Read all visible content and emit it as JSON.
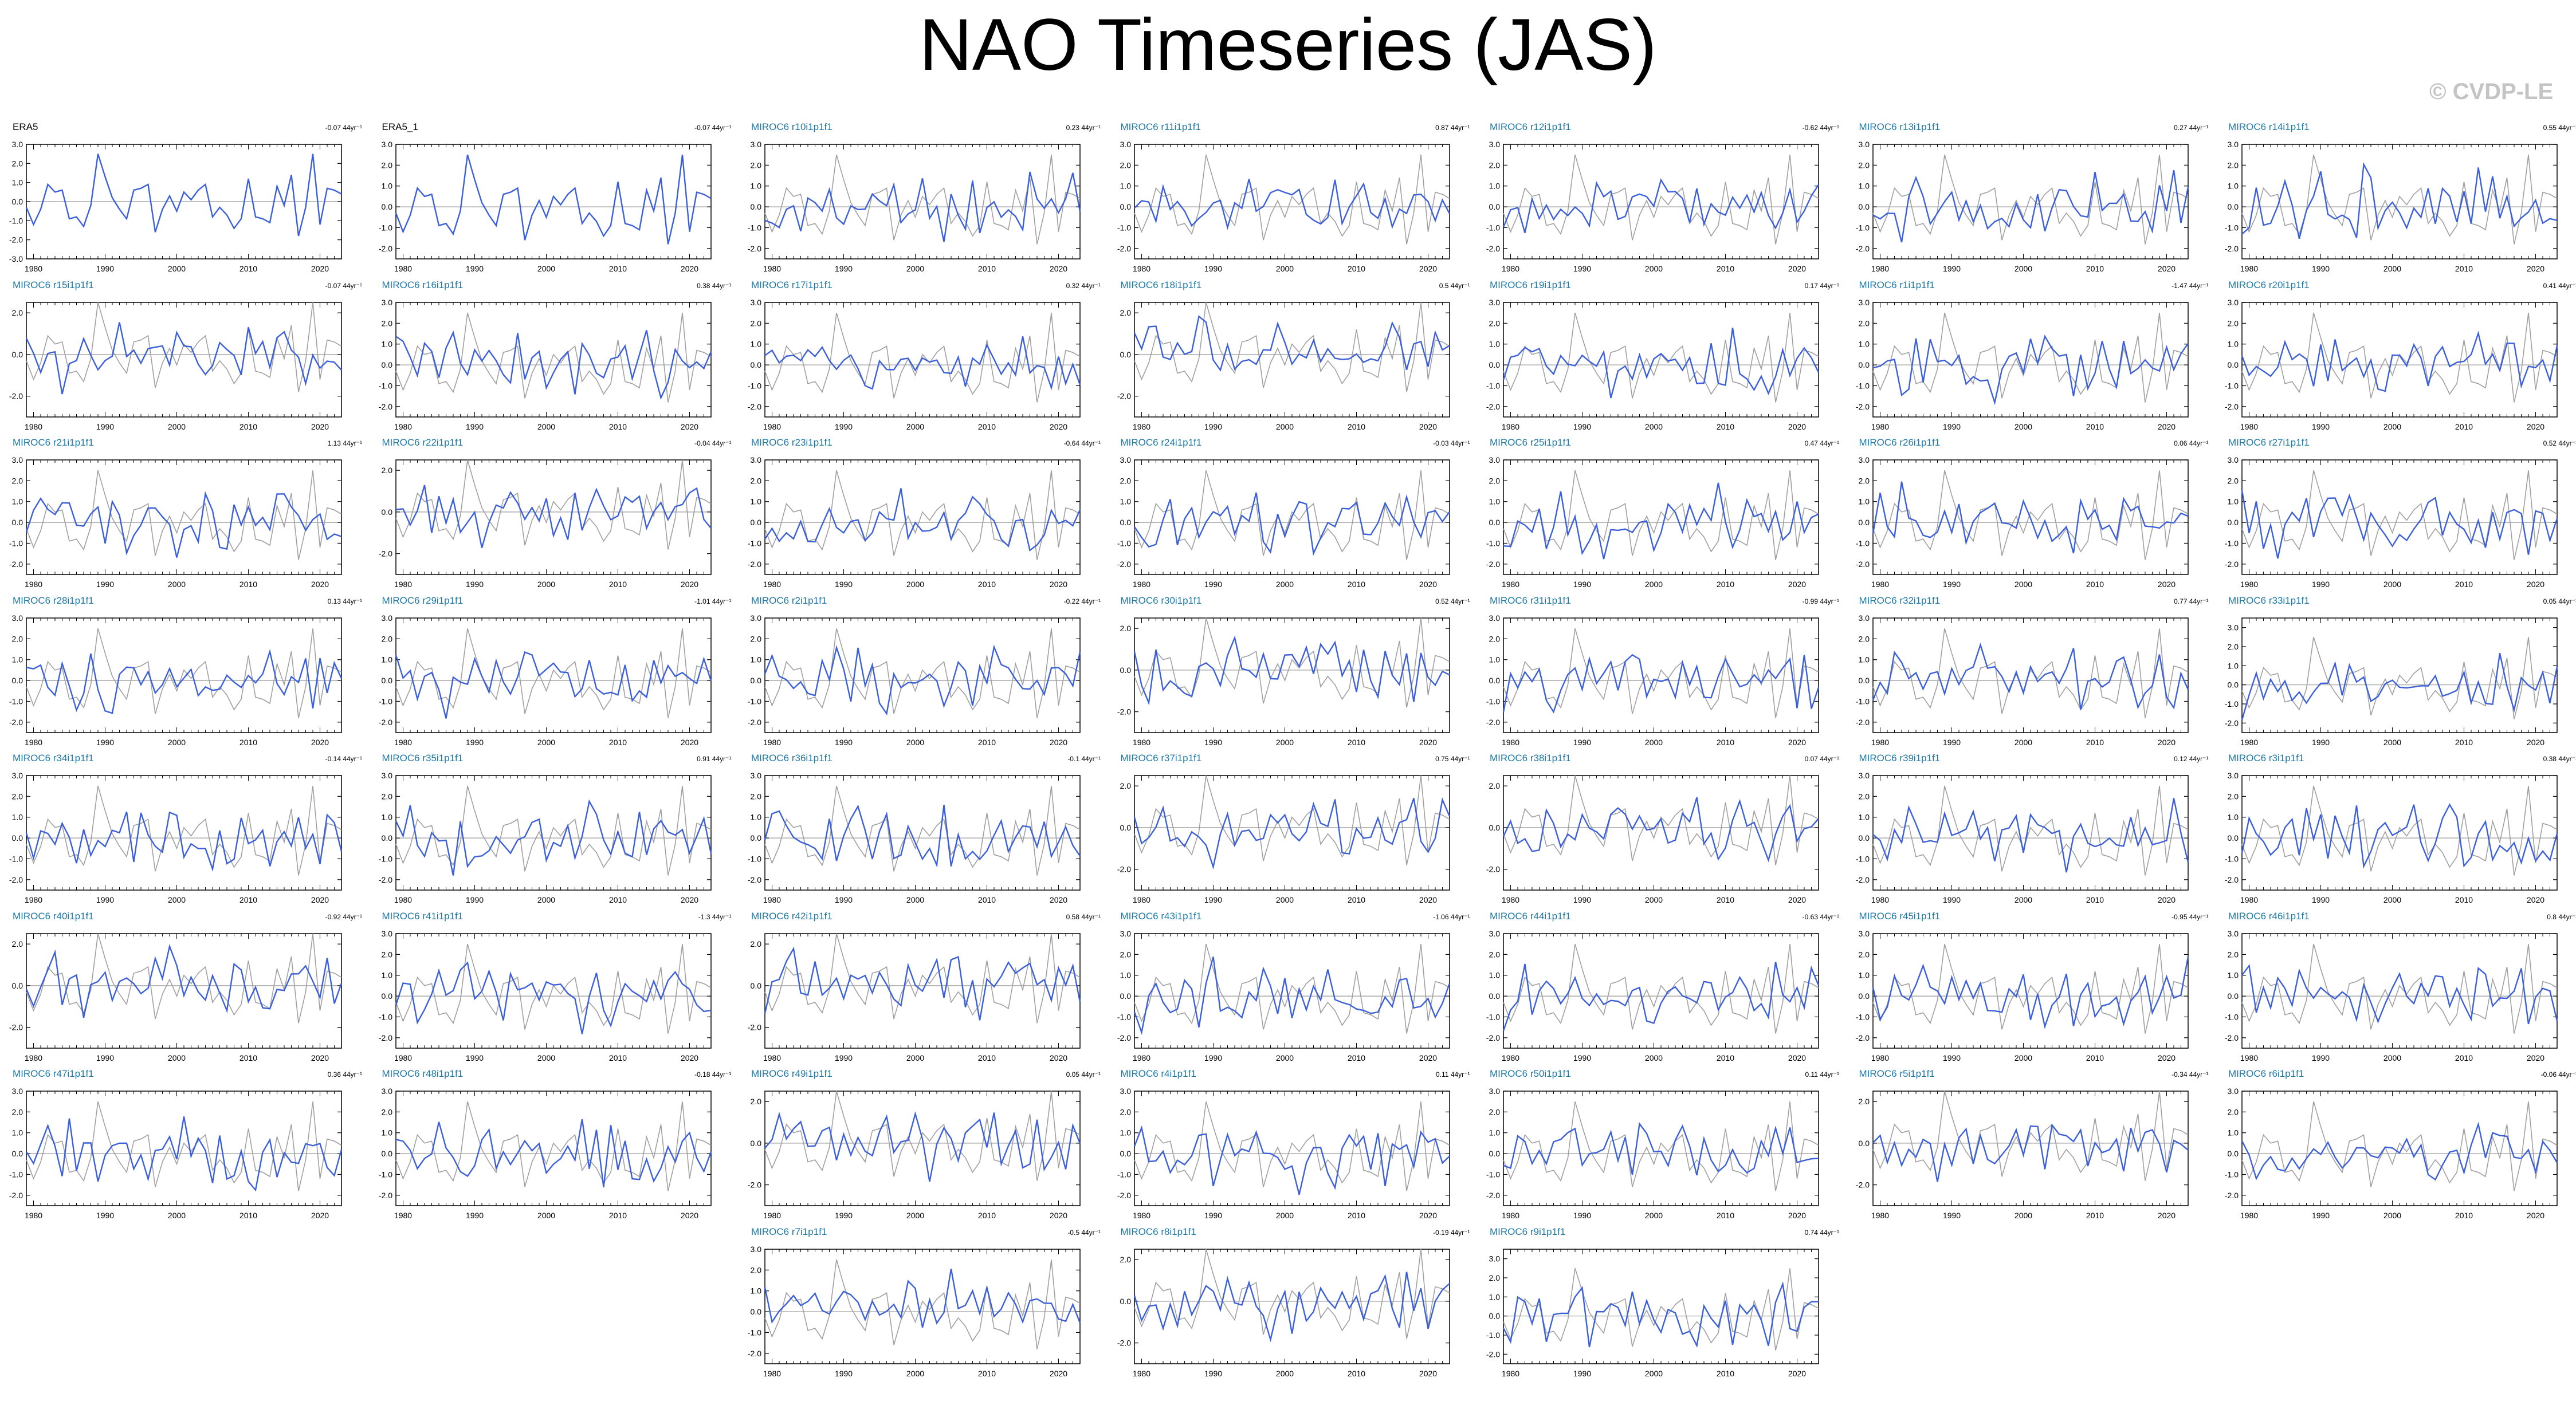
{
  "title": "NAO Timeseries (JAS)",
  "credit": "© CVDP-LE",
  "colors": {
    "obs": "#a0a0a0",
    "member": "#3b5fd8",
    "title_text": "#1e78a4",
    "obs_title": "#000000"
  },
  "chart_data": {
    "type": "line",
    "grid_layout": {
      "columns": 7,
      "rows": 8
    },
    "x_range": [
      1979,
      2023
    ],
    "x_ticks": [
      "1980",
      "1990",
      "2000",
      "2010",
      "2020"
    ],
    "y_axis_variants": {
      "A": {
        "ylim": [
          -3.0,
          3.0
        ],
        "ticks": [
          "3.0",
          "2.0",
          "1.0",
          "0.0",
          "-1.0",
          "-2.0",
          "-3.0"
        ]
      },
      "B": {
        "ylim": [
          -2.5,
          3.0
        ],
        "ticks": [
          "3.0",
          "2.0",
          "1.0",
          "0.0",
          "-1.0",
          "-2.0"
        ]
      },
      "C": {
        "ylim": [
          -3.0,
          2.5
        ],
        "ticks": [
          "2.0",
          "0.0",
          "-2.0"
        ]
      },
      "D": {
        "ylim": [
          -2.5,
          3.5
        ],
        "ticks": [
          "3.0",
          "2.0",
          "1.0",
          "0.0",
          "-1.0",
          "-2.0"
        ]
      }
    },
    "obs_series": [
      -0.3,
      -1.2,
      -0.4,
      0.9,
      0.5,
      0.6,
      -0.9,
      -0.8,
      -1.3,
      -0.2,
      2.5,
      1.3,
      0.2,
      -0.4,
      -0.9,
      0.6,
      0.7,
      0.9,
      -1.6,
      -0.4,
      0.3,
      -0.5,
      0.5,
      0.1,
      0.6,
      0.9,
      -0.8,
      -0.3,
      -0.7,
      -1.4,
      -0.9,
      1.2,
      -0.8,
      -0.9,
      -1.1,
      0.8,
      -0.2,
      1.4,
      -1.8,
      -0.3,
      2.5,
      -1.2,
      0.7,
      0.6,
      0.4
    ],
    "panels": [
      {
        "name": "ERA5",
        "trend": "-0.07 44yr⁻¹",
        "col": 0,
        "row": 0,
        "y": "A",
        "obs": true,
        "seed": 0
      },
      {
        "name": "ERA5_1",
        "trend": "-0.07 44yr⁻¹",
        "col": 1,
        "row": 0,
        "y": "B",
        "obs": true,
        "seed": 0
      },
      {
        "name": "MIROC6 r10i1p1f1",
        "trend": "0.23 44yr⁻¹",
        "col": 2,
        "row": 0,
        "y": "B",
        "seed": 11
      },
      {
        "name": "MIROC6 r11i1p1f1",
        "trend": "0.87 44yr⁻¹",
        "col": 3,
        "row": 0,
        "y": "B",
        "seed": 12
      },
      {
        "name": "MIROC6 r12i1p1f1",
        "trend": "-0.62 44yr⁻¹",
        "col": 4,
        "row": 0,
        "y": "B",
        "seed": 13
      },
      {
        "name": "MIROC6 r13i1p1f1",
        "trend": "0.27 44yr⁻¹",
        "col": 5,
        "row": 0,
        "y": "B",
        "seed": 14
      },
      {
        "name": "MIROC6 r14i1p1f1",
        "trend": "0.55 44yr⁻¹",
        "col": 6,
        "row": 0,
        "y": "B",
        "seed": 15
      },
      {
        "name": "MIROC6 r15i1p1f1",
        "trend": "-0.07 44yr⁻¹",
        "col": 0,
        "row": 1,
        "y": "C",
        "seed": 16
      },
      {
        "name": "MIROC6 r16i1p1f1",
        "trend": "0.38 44yr⁻¹",
        "col": 1,
        "row": 1,
        "y": "B",
        "seed": 17
      },
      {
        "name": "MIROC6 r17i1p1f1",
        "trend": "0.32 44yr⁻¹",
        "col": 2,
        "row": 1,
        "y": "B",
        "seed": 18
      },
      {
        "name": "MIROC6 r18i1p1f1",
        "trend": "0.5 44yr⁻¹",
        "col": 3,
        "row": 1,
        "y": "C",
        "seed": 19
      },
      {
        "name": "MIROC6 r19i1p1f1",
        "trend": "0.17 44yr⁻¹",
        "col": 4,
        "row": 1,
        "y": "B",
        "seed": 20
      },
      {
        "name": "MIROC6 r1i1p1f1",
        "trend": "-1.47 44yr⁻¹",
        "col": 5,
        "row": 1,
        "y": "B",
        "seed": 21
      },
      {
        "name": "MIROC6 r20i1p1f1",
        "trend": "0.41 44yr⁻¹",
        "col": 6,
        "row": 1,
        "y": "B",
        "seed": 22
      },
      {
        "name": "MIROC6 r21i1p1f1",
        "trend": "1.13 44yr⁻¹",
        "col": 0,
        "row": 2,
        "y": "B",
        "seed": 23
      },
      {
        "name": "MIROC6 r22i1p1f1",
        "trend": "-0.04 44yr⁻¹",
        "col": 1,
        "row": 2,
        "y": "C",
        "seed": 24
      },
      {
        "name": "MIROC6 r23i1p1f1",
        "trend": "-0.64 44yr⁻¹",
        "col": 2,
        "row": 2,
        "y": "B",
        "seed": 25
      },
      {
        "name": "MIROC6 r24i1p1f1",
        "trend": "-0.03 44yr⁻¹",
        "col": 3,
        "row": 2,
        "y": "B",
        "seed": 26
      },
      {
        "name": "MIROC6 r25i1p1f1",
        "trend": "0.47 44yr⁻¹",
        "col": 4,
        "row": 2,
        "y": "B",
        "seed": 27
      },
      {
        "name": "MIROC6 r26i1p1f1",
        "trend": "0.06 44yr⁻¹",
        "col": 5,
        "row": 2,
        "y": "B",
        "seed": 28
      },
      {
        "name": "MIROC6 r27i1p1f1",
        "trend": "0.52 44yr⁻¹",
        "col": 6,
        "row": 2,
        "y": "B",
        "seed": 29
      },
      {
        "name": "MIROC6 r28i1p1f1",
        "trend": "0.13 44yr⁻¹",
        "col": 0,
        "row": 3,
        "y": "B",
        "seed": 30
      },
      {
        "name": "MIROC6 r29i1p1f1",
        "trend": "-1.01 44yr⁻¹",
        "col": 1,
        "row": 3,
        "y": "B",
        "seed": 31
      },
      {
        "name": "MIROC6 r2i1p1f1",
        "trend": "-0.22 44yr⁻¹",
        "col": 2,
        "row": 3,
        "y": "B",
        "seed": 32
      },
      {
        "name": "MIROC6 r30i1p1f1",
        "trend": "0.52 44yr⁻¹",
        "col": 3,
        "row": 3,
        "y": "C",
        "seed": 33
      },
      {
        "name": "MIROC6 r31i1p1f1",
        "trend": "-0.99 44yr⁻¹",
        "col": 4,
        "row": 3,
        "y": "B",
        "seed": 34
      },
      {
        "name": "MIROC6 r32i1p1f1",
        "trend": "0.77 44yr⁻¹",
        "col": 5,
        "row": 3,
        "y": "B",
        "seed": 35
      },
      {
        "name": "MIROC6 r33i1p1f1",
        "trend": "0.05 44yr⁻¹",
        "col": 6,
        "row": 3,
        "y": "D",
        "seed": 36
      },
      {
        "name": "MIROC6 r34i1p1f1",
        "trend": "-0.14 44yr⁻¹",
        "col": 0,
        "row": 4,
        "y": "B",
        "seed": 37
      },
      {
        "name": "MIROC6 r35i1p1f1",
        "trend": "0.91 44yr⁻¹",
        "col": 1,
        "row": 4,
        "y": "B",
        "seed": 38
      },
      {
        "name": "MIROC6 r36i1p1f1",
        "trend": "-0.1 44yr⁻¹",
        "col": 2,
        "row": 4,
        "y": "B",
        "seed": 39
      },
      {
        "name": "MIROC6 r37i1p1f1",
        "trend": "0.75 44yr⁻¹",
        "col": 3,
        "row": 4,
        "y": "C",
        "seed": 40
      },
      {
        "name": "MIROC6 r38i1p1f1",
        "trend": "0.07 44yr⁻¹",
        "col": 4,
        "row": 4,
        "y": "C",
        "seed": 41
      },
      {
        "name": "MIROC6 r39i1p1f1",
        "trend": "0.12 44yr⁻¹",
        "col": 5,
        "row": 4,
        "y": "B",
        "seed": 42
      },
      {
        "name": "MIROC6 r3i1p1f1",
        "trend": "0.38 44yr⁻¹",
        "col": 6,
        "row": 4,
        "y": "B",
        "seed": 43
      },
      {
        "name": "MIROC6 r40i1p1f1",
        "trend": "-0.92 44yr⁻¹",
        "col": 0,
        "row": 5,
        "y": "C",
        "seed": 44
      },
      {
        "name": "MIROC6 r41i1p1f1",
        "trend": "-1.3 44yr⁻¹",
        "col": 1,
        "row": 5,
        "y": "B",
        "seed": 45
      },
      {
        "name": "MIROC6 r42i1p1f1",
        "trend": "0.58 44yr⁻¹",
        "col": 2,
        "row": 5,
        "y": "C",
        "seed": 46
      },
      {
        "name": "MIROC6 r43i1p1f1",
        "trend": "-1.06 44yr⁻¹",
        "col": 3,
        "row": 5,
        "y": "B",
        "seed": 47
      },
      {
        "name": "MIROC6 r44i1p1f1",
        "trend": "-0.63 44yr⁻¹",
        "col": 4,
        "row": 5,
        "y": "B",
        "seed": 48
      },
      {
        "name": "MIROC6 r45i1p1f1",
        "trend": "-0.95 44yr⁻¹",
        "col": 5,
        "row": 5,
        "y": "B",
        "seed": 49
      },
      {
        "name": "MIROC6 r46i1p1f1",
        "trend": "0.8 44yr⁻¹",
        "col": 6,
        "row": 5,
        "y": "B",
        "seed": 50
      },
      {
        "name": "MIROC6 r47i1p1f1",
        "trend": "0.36 44yr⁻¹",
        "col": 0,
        "row": 6,
        "y": "B",
        "seed": 51
      },
      {
        "name": "MIROC6 r48i1p1f1",
        "trend": "-0.18 44yr⁻¹",
        "col": 1,
        "row": 6,
        "y": "B",
        "seed": 52
      },
      {
        "name": "MIROC6 r49i1p1f1",
        "trend": "0.05 44yr⁻¹",
        "col": 2,
        "row": 6,
        "y": "C",
        "seed": 53
      },
      {
        "name": "MIROC6 r4i1p1f1",
        "trend": "0.11 44yr⁻¹",
        "col": 3,
        "row": 6,
        "y": "B",
        "seed": 54
      },
      {
        "name": "MIROC6 r50i1p1f1",
        "trend": "0.11 44yr⁻¹",
        "col": 4,
        "row": 6,
        "y": "B",
        "seed": 55
      },
      {
        "name": "MIROC6 r5i1p1f1",
        "trend": "-0.34 44yr⁻¹",
        "col": 5,
        "row": 6,
        "y": "C",
        "seed": 56
      },
      {
        "name": "MIROC6 r6i1p1f1",
        "trend": "-0.06 44yr⁻¹",
        "col": 6,
        "row": 6,
        "y": "B",
        "seed": 57
      },
      {
        "name": "MIROC6 r7i1p1f1",
        "trend": "-0.5 44yr⁻¹",
        "col": 2,
        "row": 7,
        "y": "B",
        "seed": 58
      },
      {
        "name": "MIROC6 r8i1p1f1",
        "trend": "-0.19 44yr⁻¹",
        "col": 3,
        "row": 7,
        "y": "C",
        "seed": 59
      },
      {
        "name": "MIROC6 r9i1p1f1",
        "trend": "0.74 44yr⁻¹",
        "col": 4,
        "row": 7,
        "y": "D",
        "seed": 60
      }
    ]
  }
}
